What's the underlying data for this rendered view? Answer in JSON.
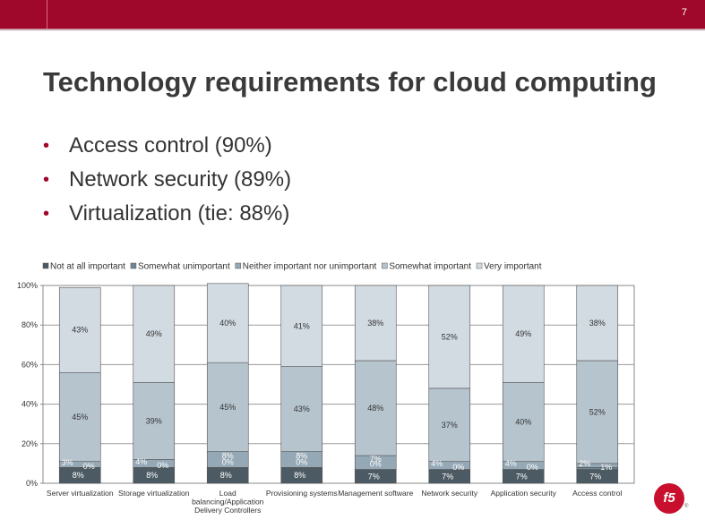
{
  "slide": {
    "number": "7",
    "title": "Technology requirements for cloud computing",
    "bullets": [
      "Access control (90%)",
      "Network security (89%)",
      "Virtualization (tie: 88%)"
    ],
    "logo_text": "f5",
    "logo_mark": "®"
  },
  "colors": {
    "brand": "#a0082b",
    "series": [
      "#4b5a63",
      "#6f8593",
      "#95a8b5",
      "#b6c4ce",
      "#d3dbe2"
    ]
  },
  "chart_data": {
    "type": "bar",
    "stacked": true,
    "legend_position": "top",
    "grid": true,
    "ylim": [
      0,
      100
    ],
    "y_ticks": [
      "0%",
      "20%",
      "40%",
      "60%",
      "80%",
      "100%"
    ],
    "categories": [
      [
        "Server virtualization"
      ],
      [
        "Storage virtualization"
      ],
      [
        "Load",
        "balancing/Application",
        "Delivery Controllers"
      ],
      [
        "Provisioning systems"
      ],
      [
        "Management software"
      ],
      [
        "Network security"
      ],
      [
        "Application security"
      ],
      [
        "Access control"
      ]
    ],
    "series": [
      {
        "name": "Not at all important",
        "values": [
          8,
          8,
          8,
          8,
          7,
          7,
          7,
          7
        ]
      },
      {
        "name": "Somewhat unimportant",
        "values": [
          0,
          0,
          0,
          0,
          0,
          0,
          0,
          1
        ]
      },
      {
        "name": "Neither important nor unimportant",
        "values": [
          3,
          4,
          8,
          8,
          7,
          4,
          4,
          2
        ]
      },
      {
        "name": "Somewhat important",
        "values": [
          45,
          39,
          45,
          43,
          48,
          37,
          40,
          52
        ]
      },
      {
        "name": "Very important",
        "values": [
          43,
          49,
          40,
          41,
          38,
          52,
          49,
          38
        ]
      }
    ]
  }
}
